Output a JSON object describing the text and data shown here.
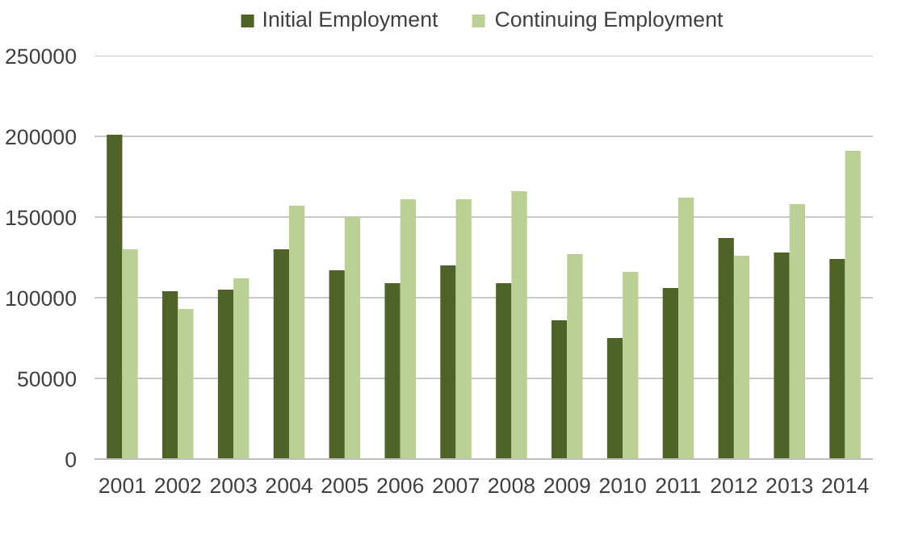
{
  "chart_data": {
    "type": "bar",
    "categories": [
      "2001",
      "2002",
      "2003",
      "2004",
      "2005",
      "2006",
      "2007",
      "2008",
      "2009",
      "2010",
      "2011",
      "2012",
      "2013",
      "2014"
    ],
    "series": [
      {
        "name": "Initial Employment",
        "color": "#4f6228",
        "values": [
          201000,
          104000,
          105000,
          130000,
          117000,
          109000,
          120000,
          109000,
          86000,
          75000,
          106000,
          137000,
          128000,
          124000
        ]
      },
      {
        "name": "Continuing Employment",
        "color": "#bad094",
        "values": [
          130000,
          93000,
          112000,
          157000,
          150000,
          161000,
          161000,
          166000,
          127000,
          116000,
          162000,
          126000,
          158000,
          191000
        ]
      }
    ],
    "ylim": [
      0,
      250000
    ],
    "yticks": [
      0,
      50000,
      100000,
      150000,
      200000,
      250000
    ],
    "grid": "y",
    "legend": "top"
  }
}
